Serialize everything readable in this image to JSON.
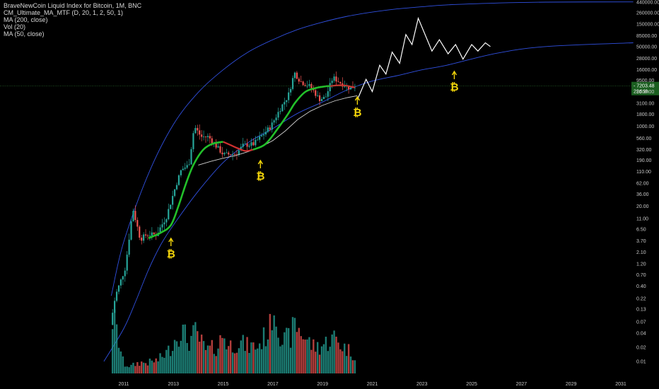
{
  "legend": {
    "symbol": "BraveNewCoin Liquid Index for Bitcoin, 1M, BNC",
    "indicator": "CM_Ultimate_MA_MTF (D, 20, 1, 2, 50, 1)",
    "ma200": "MA (200, close)",
    "vol": "Vol (20)",
    "ma50": "MA (50, close)"
  },
  "colors": {
    "background": "#000000",
    "channel": "#3050e0",
    "up_candle": "#26a69a",
    "down_candle": "#ef5350",
    "ma_green": "#22c02a",
    "ma_red": "#d03030",
    "ma200": "#d0d0d0",
    "projection": "#ffffff",
    "btc_marker": "#f5d60a",
    "price_line": "#2e7d32"
  },
  "chart_data": {
    "type": "candlestick",
    "y_scale": "log",
    "y_ticks": [
      "440000.00",
      "260000.00",
      "150000.00",
      "85000.00",
      "50000.00",
      "28000.00",
      "16000.00",
      "9500.00",
      "5500.00",
      "3100.00",
      "1800.00",
      "1000.00",
      "560.00",
      "320.00",
      "190.00",
      "110.00",
      "62.00",
      "36.00",
      "20.00",
      "11.00",
      "6.50",
      "3.70",
      "2.10",
      "1.20",
      "0.70",
      "0.40",
      "0.22",
      "0.13",
      "0.07",
      "0.04",
      "0.02",
      "0.01"
    ],
    "x_ticks": [
      "2011",
      "2013",
      "2015",
      "2017",
      "2019",
      "2021",
      "2023",
      "2025",
      "2027",
      "2029",
      "2031"
    ],
    "last_price": {
      "value": "7203.48",
      "countdown": "22d 9h"
    },
    "btc_markers": [
      {
        "date": "2012.9",
        "symbol": "₿"
      },
      {
        "date": "2016.5",
        "symbol": "₿"
      },
      {
        "date": "2020.4",
        "symbol": "₿"
      },
      {
        "date": "2024.3",
        "symbol": "₿"
      }
    ],
    "price_anchors": [
      [
        2010.55,
        0.06
      ],
      [
        2010.75,
        0.25
      ],
      [
        2011.15,
        1.0
      ],
      [
        2011.45,
        18
      ],
      [
        2011.75,
        4
      ],
      [
        2012.0,
        5
      ],
      [
        2012.4,
        5
      ],
      [
        2012.8,
        12
      ],
      [
        2013.2,
        60
      ],
      [
        2013.4,
        120
      ],
      [
        2013.7,
        150
      ],
      [
        2013.92,
        1000
      ],
      [
        2014.2,
        600
      ],
      [
        2014.5,
        600
      ],
      [
        2014.9,
        330
      ],
      [
        2015.1,
        250
      ],
      [
        2015.6,
        260
      ],
      [
        2015.9,
        400
      ],
      [
        2016.3,
        420
      ],
      [
        2016.6,
        600
      ],
      [
        2017.0,
        1000
      ],
      [
        2017.4,
        2500
      ],
      [
        2017.7,
        4500
      ],
      [
        2017.95,
        14000
      ],
      [
        2018.2,
        9000
      ],
      [
        2018.6,
        7000
      ],
      [
        2018.95,
        3800
      ],
      [
        2019.2,
        4100
      ],
      [
        2019.5,
        11000
      ],
      [
        2019.8,
        8500
      ],
      [
        2020.2,
        6400
      ],
      [
        2020.35,
        7203
      ]
    ],
    "ma_green_points": [
      [
        2012.0,
        4.2
      ],
      [
        2012.5,
        5.5
      ],
      [
        2012.9,
        8
      ],
      [
        2013.2,
        20
      ],
      [
        2013.5,
        60
      ],
      [
        2013.8,
        150
      ],
      [
        2014.2,
        320
      ],
      [
        2014.6,
        430
      ],
      [
        2015.0,
        470
      ]
    ],
    "ma_red_points": [
      [
        2015.0,
        470
      ],
      [
        2015.3,
        400
      ],
      [
        2015.6,
        340
      ],
      [
        2015.9,
        300
      ],
      [
        2016.2,
        320
      ]
    ],
    "ma_green_points_2": [
      [
        2016.2,
        320
      ],
      [
        2016.7,
        420
      ],
      [
        2017.2,
        900
      ],
      [
        2017.6,
        1800
      ],
      [
        2017.9,
        3200
      ],
      [
        2018.3,
        5400
      ],
      [
        2018.7,
        6500
      ],
      [
        2019.1,
        7100
      ],
      [
        2019.3,
        7200
      ]
    ],
    "ma_red_points_2": [
      [
        2019.3,
        7200
      ],
      [
        2019.7,
        7500
      ],
      [
        2020.0,
        7300
      ],
      [
        2020.3,
        6700
      ]
    ],
    "ma200_points": [
      [
        2014.0,
        150
      ],
      [
        2014.5,
        180
      ],
      [
        2015.0,
        210
      ],
      [
        2015.5,
        240
      ],
      [
        2016.0,
        290
      ],
      [
        2016.5,
        360
      ],
      [
        2017.0,
        500
      ],
      [
        2017.5,
        800
      ],
      [
        2018.0,
        1400
      ],
      [
        2018.5,
        2100
      ],
      [
        2019.0,
        2800
      ],
      [
        2019.5,
        3500
      ],
      [
        2020.0,
        4100
      ],
      [
        2020.4,
        4500
      ]
    ],
    "projection_points": [
      [
        2020.4,
        3700
      ],
      [
        2020.75,
        10000
      ],
      [
        2021.0,
        5500
      ],
      [
        2021.3,
        20000
      ],
      [
        2021.55,
        13000
      ],
      [
        2021.8,
        38000
      ],
      [
        2022.1,
        22000
      ],
      [
        2022.35,
        90000
      ],
      [
        2022.6,
        55000
      ],
      [
        2022.85,
        200000
      ],
      [
        2023.4,
        40000
      ],
      [
        2023.7,
        70000
      ],
      [
        2024.05,
        35000
      ],
      [
        2024.35,
        55000
      ],
      [
        2024.65,
        27000
      ],
      [
        2025.0,
        55000
      ],
      [
        2025.25,
        40000
      ],
      [
        2025.55,
        60000
      ],
      [
        2025.75,
        50000
      ]
    ],
    "channel_upper": [
      [
        2010.5,
        0.25
      ],
      [
        2011.0,
        3.5
      ],
      [
        2012.0,
        100
      ],
      [
        2013.0,
        1100
      ],
      [
        2014.0,
        5300
      ],
      [
        2015.0,
        16000
      ],
      [
        2016.0,
        38000
      ],
      [
        2017.0,
        70000
      ],
      [
        2018.0,
        115000
      ],
      [
        2019.0,
        165000
      ],
      [
        2020.0,
        220000
      ],
      [
        2021.0,
        270000
      ],
      [
        2022.0,
        315000
      ],
      [
        2023.0,
        350000
      ],
      [
        2024.0,
        385000
      ],
      [
        2026.0,
        420000
      ],
      [
        2028.0,
        440000
      ],
      [
        2031.5,
        445000
      ]
    ],
    "channel_lower": [
      [
        2010.2,
        0.01
      ],
      [
        2011.0,
        0.05
      ],
      [
        2011.5,
        0.2
      ],
      [
        2012.0,
        0.9
      ],
      [
        2012.5,
        3.1
      ],
      [
        2013.0,
        8
      ],
      [
        2014.0,
        42
      ],
      [
        2015.0,
        170
      ],
      [
        2016.0,
        450
      ],
      [
        2017.0,
        900
      ],
      [
        2018.0,
        1900
      ],
      [
        2019.0,
        3300
      ],
      [
        2020.0,
        6000
      ],
      [
        2021.0,
        9200
      ],
      [
        2022.0,
        12000
      ],
      [
        2023.0,
        16000
      ],
      [
        2024.0,
        20000
      ],
      [
        2026.0,
        36000
      ],
      [
        2028.0,
        50000
      ],
      [
        2031.5,
        60000
      ]
    ],
    "volume_profile": [
      [
        2010.6,
        0.6
      ],
      [
        2011.0,
        0.1
      ],
      [
        2011.3,
        0.08
      ],
      [
        2011.6,
        0.12
      ],
      [
        2012.0,
        0.12
      ],
      [
        2012.4,
        0.15
      ],
      [
        2012.8,
        0.25
      ],
      [
        2013.0,
        0.35
      ],
      [
        2013.3,
        0.5
      ],
      [
        2013.6,
        0.35
      ],
      [
        2013.9,
        0.45
      ],
      [
        2014.3,
        0.25
      ],
      [
        2014.8,
        0.3
      ],
      [
        2015.0,
        0.45
      ],
      [
        2015.2,
        0.3
      ],
      [
        2015.6,
        0.35
      ],
      [
        2016.0,
        0.3
      ],
      [
        2016.4,
        0.3
      ],
      [
        2016.9,
        0.5
      ],
      [
        2017.0,
        0.8
      ],
      [
        2017.4,
        0.35
      ],
      [
        2017.7,
        0.4
      ],
      [
        2017.9,
        0.55
      ],
      [
        2018.3,
        0.4
      ],
      [
        2018.6,
        0.3
      ],
      [
        2018.9,
        0.3
      ],
      [
        2019.2,
        0.35
      ],
      [
        2019.5,
        0.4
      ],
      [
        2019.8,
        0.3
      ],
      [
        2020.1,
        0.25
      ],
      [
        2020.3,
        0.2
      ]
    ]
  }
}
